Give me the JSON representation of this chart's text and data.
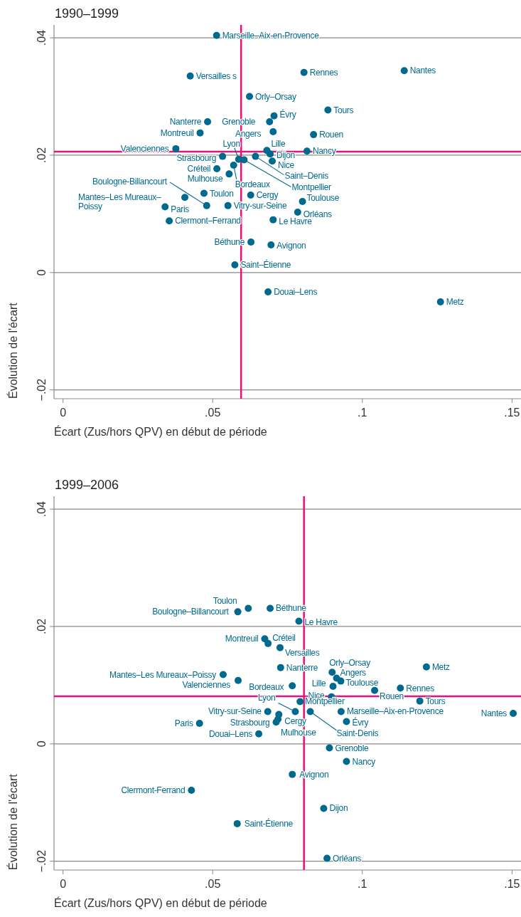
{
  "chart_data": [
    {
      "type": "scatter",
      "title": "1990–1999",
      "xlabel": "Écart (Zus/hors QPV) en début de période",
      "ylabel": "Évolution de l'écart",
      "xlim": [
        -0.003,
        0.153
      ],
      "ylim": [
        -0.0215,
        0.0422
      ],
      "xticks": [
        0,
        {
          "value": 0.05,
          "label": ".05"
        },
        {
          "value": 0.1,
          "label": ".1"
        },
        {
          "value": 0.15,
          "label": ".15"
        }
      ],
      "yticks": [
        {
          "value": -0.02,
          "label": "−.02"
        },
        0,
        {
          "value": 0.02,
          "label": ".02"
        },
        {
          "value": 0.04,
          "label": ".04"
        }
      ],
      "grid": "y",
      "marker": "circle",
      "ref_lines": [
        {
          "axis": "x",
          "value": 0.0595,
          "color": "#e5127d"
        },
        {
          "axis": "y",
          "value": 0.0206,
          "color": "#e5127d"
        }
      ],
      "series": [
        {
          "color": "#006a8e",
          "x": [
            0.0513,
            0.0425,
            0.0623,
            0.0705,
            0.069,
            0.0702,
            0.0483,
            0.0458,
            0.0377,
            0.0805,
            0.114,
            0.0885,
            0.0837,
            0.0815,
            0.0681,
            0.0692,
            0.0699,
            0.0643,
            0.0605,
            0.0587,
            0.0533,
            0.057,
            0.0514,
            0.0555,
            0.0471,
            0.048,
            0.0407,
            0.0341,
            0.0355,
            0.0551,
            0.0627,
            0.08,
            0.0784,
            0.0702,
            0.0628,
            0.0695,
            0.0574,
            0.0685,
            0.1261
          ],
          "values": [
            0.0404,
            0.0335,
            0.03,
            0.0267,
            0.0257,
            0.024,
            0.0257,
            0.0238,
            0.0211,
            0.0341,
            0.0344,
            0.0277,
            0.0235,
            0.0207,
            0.0208,
            0.0202,
            0.019,
            0.0198,
            0.0192,
            0.0193,
            0.0198,
            0.0183,
            0.0177,
            0.0168,
            0.0135,
            0.0114,
            0.0128,
            0.0112,
            0.0088,
            0.0114,
            0.0132,
            0.0121,
            0.0103,
            0.009,
            0.0052,
            0.0047,
            0.0013,
            -0.0033,
            -0.005
          ]
        }
      ],
      "annotations": [
        {
          "text": "Marseille–Aix-en-Provence",
          "x": 0.0513,
          "y": 0.0404
        },
        {
          "text": "Versailles s",
          "x": 0.0425,
          "y": 0.0335
        },
        {
          "text": "Orly–Orsay",
          "x": 0.0623,
          "y": 0.03
        },
        {
          "text": "Évry",
          "x": 0.0705,
          "y": 0.0267
        },
        {
          "text": "Grenoble",
          "x": 0.069,
          "y": 0.0257
        },
        {
          "text": "Angers",
          "x": 0.0702,
          "y": 0.024
        },
        {
          "text": "Nanterre",
          "x": 0.0483,
          "y": 0.0257
        },
        {
          "text": "Montreuil",
          "x": 0.0458,
          "y": 0.0238
        },
        {
          "text": "Valenciennes",
          "x": 0.0377,
          "y": 0.0211
        },
        {
          "text": "Rennes",
          "x": 0.0805,
          "y": 0.0341
        },
        {
          "text": "Nantes",
          "x": 0.114,
          "y": 0.0344
        },
        {
          "text": "Tours",
          "x": 0.0885,
          "y": 0.0277
        },
        {
          "text": "Rouen",
          "x": 0.0837,
          "y": 0.0235
        },
        {
          "text": "Nancy",
          "x": 0.0815,
          "y": 0.0207
        },
        {
          "text": "Lille",
          "x": 0.0681,
          "y": 0.0208
        },
        {
          "text": "Dijon",
          "x": 0.0692,
          "y": 0.0202
        },
        {
          "text": "Nice",
          "x": 0.0699,
          "y": 0.019
        },
        {
          "text": "Saint–Denis",
          "x": 0.0643,
          "y": 0.0198
        },
        {
          "text": "Montpellier",
          "x": 0.0605,
          "y": 0.0192
        },
        {
          "text": "Lyon",
          "x": 0.0587,
          "y": 0.0193
        },
        {
          "text": "Strasbourg",
          "x": 0.0533,
          "y": 0.0198
        },
        {
          "text": "Bordeaux",
          "x": 0.057,
          "y": 0.0183
        },
        {
          "text": "Créteil",
          "x": 0.0514,
          "y": 0.0177
        },
        {
          "text": "Mulhouse",
          "x": 0.0555,
          "y": 0.0168
        },
        {
          "text": "Toulon",
          "x": 0.0471,
          "y": 0.0135
        },
        {
          "text": "Boulogne-Billancourt",
          "x": 0.048,
          "y": 0.0114
        },
        {
          "text": "Mantes–Les Mureaux–\nPoissy",
          "x": 0.0407,
          "y": 0.0128
        },
        {
          "text": "Paris",
          "x": 0.0341,
          "y": 0.0112
        },
        {
          "text": "Clermont–Ferrand",
          "x": 0.0355,
          "y": 0.0088
        },
        {
          "text": "Vitry-sur-Seine",
          "x": 0.0551,
          "y": 0.0114
        },
        {
          "text": "Cergy",
          "x": 0.0627,
          "y": 0.0132
        },
        {
          "text": "Toulouse",
          "x": 0.08,
          "y": 0.0121
        },
        {
          "text": "Orléans",
          "x": 0.0784,
          "y": 0.0103
        },
        {
          "text": "Le Havre",
          "x": 0.0702,
          "y": 0.009
        },
        {
          "text": "Béthune",
          "x": 0.0628,
          "y": 0.0052
        },
        {
          "text": "Avignon",
          "x": 0.0695,
          "y": 0.0047
        },
        {
          "text": "Saint–Étienne",
          "x": 0.0574,
          "y": 0.0013
        },
        {
          "text": "Douai–Lens",
          "x": 0.0685,
          "y": -0.0033
        },
        {
          "text": "Metz",
          "x": 0.1261,
          "y": -0.005
        }
      ]
    },
    {
      "type": "scatter",
      "title": "1999–2006",
      "xlabel": "Écart (Zus/hors QPV) en début de période",
      "ylabel": "Évolution de l'écart",
      "xlim": [
        -0.003,
        0.153
      ],
      "ylim": [
        -0.0215,
        0.0422
      ],
      "xticks": [
        0,
        {
          "value": 0.05,
          "label": ".05"
        },
        {
          "value": 0.1,
          "label": ".1"
        },
        {
          "value": 0.15,
          "label": ".15"
        }
      ],
      "yticks": [
        {
          "value": -0.02,
          "label": "−.02"
        },
        0,
        {
          "value": 0.02,
          "label": ".02"
        },
        {
          "value": 0.04,
          "label": ".04"
        }
      ],
      "grid": "y",
      "marker": "circle",
      "ref_lines": [
        {
          "axis": "x",
          "value": 0.0805,
          "color": "#e5127d"
        },
        {
          "axis": "y",
          "value": 0.0081,
          "color": "#e5127d"
        }
      ],
      "series": [
        {
          "color": "#006a8e",
          "x": [
            0.0619,
            0.0584,
            0.0692,
            0.0788,
            0.0674,
            0.0685,
            0.0725,
            0.0727,
            0.0535,
            0.0585,
            0.0766,
            0.0902,
            0.0897,
            0.0899,
            0.0914,
            0.0928,
            0.1041,
            0.1127,
            0.1214,
            0.1192,
            0.1504,
            0.0792,
            0.0776,
            0.0826,
            0.0929,
            0.0947,
            0.0721,
            0.0712,
            0.0718,
            0.0684,
            0.0456,
            0.0654,
            0.089,
            0.0947,
            0.0766,
            0.0429,
            0.0871,
            0.0582,
            0.0882
          ],
          "values": [
            0.0231,
            0.0225,
            0.0231,
            0.0209,
            0.0179,
            0.0171,
            0.0164,
            0.013,
            0.0118,
            0.0108,
            0.0099,
            0.0098,
            0.008,
            0.0122,
            0.0112,
            0.0107,
            0.0091,
            0.0095,
            0.0131,
            0.0073,
            0.0052,
            0.0072,
            0.0055,
            0.0055,
            0.0055,
            0.0038,
            0.005,
            0.0037,
            0.0042,
            0.0055,
            0.0035,
            0.0017,
            -0.0007,
            -0.003,
            -0.0052,
            -0.0079,
            -0.011,
            -0.0136,
            -0.0195
          ]
        }
      ],
      "annotations": [
        {
          "text": "Toulon",
          "x": 0.0619,
          "y": 0.0231
        },
        {
          "text": "Boulogne–Billancourt",
          "x": 0.0584,
          "y": 0.0225
        },
        {
          "text": "Béthune",
          "x": 0.0692,
          "y": 0.0231
        },
        {
          "text": "Le Havre",
          "x": 0.0788,
          "y": 0.0209
        },
        {
          "text": "Montreuil",
          "x": 0.0674,
          "y": 0.0179
        },
        {
          "text": "Créteil",
          "x": 0.0685,
          "y": 0.0171
        },
        {
          "text": "Versailles",
          "x": 0.0725,
          "y": 0.0164
        },
        {
          "text": "Nanterre",
          "x": 0.0727,
          "y": 0.013
        },
        {
          "text": "Mantes–Les Mureaux–Poissy",
          "x": 0.0535,
          "y": 0.0118
        },
        {
          "text": "Valenciennes",
          "x": 0.0585,
          "y": 0.0108
        },
        {
          "text": "Bordeaux",
          "x": 0.0766,
          "y": 0.0099
        },
        {
          "text": "Lille",
          "x": 0.0902,
          "y": 0.0098
        },
        {
          "text": "Nice",
          "x": 0.0897,
          "y": 0.008
        },
        {
          "text": "Orly–Orsay",
          "x": 0.0899,
          "y": 0.0122
        },
        {
          "text": "Angers",
          "x": 0.0914,
          "y": 0.0112
        },
        {
          "text": "Toulouse",
          "x": 0.0928,
          "y": 0.0107
        },
        {
          "text": "Rouen",
          "x": 0.1041,
          "y": 0.0091
        },
        {
          "text": "Rennes",
          "x": 0.1127,
          "y": 0.0095
        },
        {
          "text": "Metz",
          "x": 0.1214,
          "y": 0.0131
        },
        {
          "text": "Tours",
          "x": 0.1192,
          "y": 0.0073
        },
        {
          "text": "Nantes",
          "x": 0.1504,
          "y": 0.0052
        },
        {
          "text": "Montpellier",
          "x": 0.0792,
          "y": 0.0072
        },
        {
          "text": "Lyon",
          "x": 0.0776,
          "y": 0.0055
        },
        {
          "text": "Saint-Denis",
          "x": 0.0826,
          "y": 0.0055
        },
        {
          "text": "Marseille–Aix-en-Provence",
          "x": 0.0929,
          "y": 0.0055
        },
        {
          "text": "Évry",
          "x": 0.0947,
          "y": 0.0038
        },
        {
          "text": "Cergy",
          "x": 0.0721,
          "y": 0.005
        },
        {
          "text": "Strasbourg",
          "x": 0.0712,
          "y": 0.0037
        },
        {
          "text": "Mulhouse",
          "x": 0.0718,
          "y": 0.0042
        },
        {
          "text": "Vitry-sur-Seine",
          "x": 0.0684,
          "y": 0.0055
        },
        {
          "text": "Paris",
          "x": 0.0456,
          "y": 0.0035
        },
        {
          "text": "Douai–Lens",
          "x": 0.0654,
          "y": 0.0017
        },
        {
          "text": "Grenoble",
          "x": 0.089,
          "y": -0.0007
        },
        {
          "text": "Nancy",
          "x": 0.0947,
          "y": -0.003
        },
        {
          "text": "Avignon",
          "x": 0.0766,
          "y": -0.0052
        },
        {
          "text": "Clermont-Ferrand",
          "x": 0.0429,
          "y": -0.0079
        },
        {
          "text": "Dijon",
          "x": 0.0871,
          "y": -0.011
        },
        {
          "text": "Saint-Étienne",
          "x": 0.0582,
          "y": -0.0136
        },
        {
          "text": "Orléans",
          "x": 0.0882,
          "y": -0.0195
        }
      ]
    }
  ]
}
